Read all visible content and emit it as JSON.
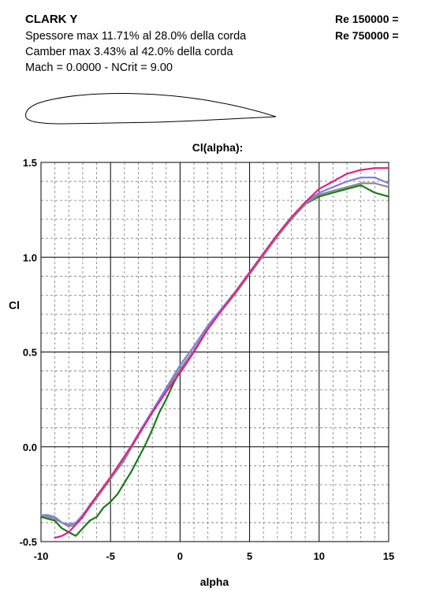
{
  "header": {
    "airfoil_name": "CLARK Y",
    "thickness": "Spessore max 11.71% al 28.0% della corda",
    "camber": "Camber max 3.43% al 42.0% della corda",
    "mach": "Mach = 0.0000 - NCrit = 9.00",
    "re_labels": [
      "Re 150000 =",
      "Re 750000 ="
    ]
  },
  "chart_data": {
    "type": "line",
    "title": "Cl(alpha):",
    "xlabel": "alpha",
    "ylabel": "Cl",
    "xlim": [
      -10,
      15
    ],
    "ylim": [
      -0.5,
      1.5
    ],
    "x_ticks": [
      -10,
      -5,
      0,
      5,
      10,
      15
    ],
    "x_tick_labels": [
      "-10",
      "-5",
      "0",
      "5",
      "10",
      "15"
    ],
    "y_ticks": [
      -0.5,
      0.0,
      0.5,
      1.0,
      1.5
    ],
    "y_tick_labels": [
      "-0.5",
      "0.0",
      "0.5",
      "1.0",
      "1.5"
    ],
    "grid": true,
    "series": [
      {
        "color": "#1a7a1a",
        "x": [
          -10,
          -9.5,
          -9.0,
          -8.5,
          -8.0,
          -7.5,
          -7.0,
          -6.5,
          -6.0,
          -5.5,
          -5.0,
          -4.5,
          -4.0,
          -3.5,
          -3.0,
          -2.5,
          -2.0,
          -1.5,
          -1.0,
          -0.5,
          0.0,
          0.5,
          1.0,
          2.0,
          3.0,
          4.0,
          5.0,
          6.0,
          7.0,
          8.0,
          9.0,
          10.0,
          11.0,
          12.0,
          12.5,
          13.0,
          13.5,
          14.0,
          14.5,
          15.0
        ],
        "y": [
          -0.37,
          -0.38,
          -0.39,
          -0.43,
          -0.45,
          -0.47,
          -0.43,
          -0.39,
          -0.37,
          -0.32,
          -0.29,
          -0.25,
          -0.19,
          -0.13,
          -0.06,
          0.01,
          0.09,
          0.18,
          0.25,
          0.33,
          0.4,
          0.45,
          0.5,
          0.63,
          0.72,
          0.81,
          0.91,
          1.01,
          1.11,
          1.2,
          1.28,
          1.32,
          1.34,
          1.36,
          1.37,
          1.38,
          1.36,
          1.34,
          1.33,
          1.32
        ]
      },
      {
        "color": "#8a8a8a",
        "x": [
          -10,
          -9.5,
          -9.0,
          -8.5,
          -8.0,
          -7.5,
          -7.0,
          -6.5,
          -6.0,
          -5.0,
          -4.0,
          -3.0,
          -2.0,
          -1.0,
          0.0,
          0.5,
          1.0,
          2.0,
          3.0,
          4.0,
          5.0,
          6.0,
          7.0,
          8.0,
          9.0,
          10.0,
          11.0,
          12.0,
          13.0,
          14.0,
          15.0
        ],
        "y": [
          -0.36,
          -0.37,
          -0.38,
          -0.4,
          -0.42,
          -0.41,
          -0.37,
          -0.32,
          -0.27,
          -0.17,
          -0.07,
          0.06,
          0.18,
          0.3,
          0.41,
          0.46,
          0.51,
          0.63,
          0.72,
          0.81,
          0.91,
          1.01,
          1.11,
          1.2,
          1.28,
          1.33,
          1.35,
          1.37,
          1.39,
          1.39,
          1.37
        ]
      },
      {
        "color": "#7f7fe0",
        "x": [
          -10,
          -9.5,
          -9.0,
          -8.5,
          -8.0,
          -7.5,
          -7.0,
          -6.5,
          -6.0,
          -5.0,
          -4.0,
          -3.0,
          -2.0,
          -1.0,
          0.0,
          0.5,
          1.0,
          2.0,
          3.0,
          4.0,
          5.0,
          6.0,
          7.0,
          8.0,
          9.0,
          10.0,
          11.0,
          12.0,
          13.0,
          14.0,
          15.0
        ],
        "y": [
          -0.36,
          -0.36,
          -0.37,
          -0.4,
          -0.41,
          -0.4,
          -0.36,
          -0.31,
          -0.26,
          -0.16,
          -0.06,
          0.07,
          0.19,
          0.31,
          0.43,
          0.48,
          0.53,
          0.64,
          0.73,
          0.82,
          0.92,
          1.02,
          1.12,
          1.21,
          1.29,
          1.34,
          1.37,
          1.4,
          1.42,
          1.42,
          1.39
        ]
      },
      {
        "color": "#e0208a",
        "x": [
          -9.0,
          -8.5,
          -8.0,
          -7.5,
          -7.0,
          -6.5,
          -6.0,
          -5.5,
          -5.0,
          -4.0,
          -3.0,
          -2.0,
          -1.0,
          0.0,
          1.0,
          2.0,
          3.0,
          4.0,
          5.0,
          6.0,
          7.0,
          8.0,
          9.0,
          10.0,
          11.0,
          12.0,
          13.0,
          14.0,
          15.0
        ],
        "y": [
          -0.48,
          -0.47,
          -0.45,
          -0.41,
          -0.37,
          -0.31,
          -0.26,
          -0.21,
          -0.16,
          -0.05,
          0.06,
          0.18,
          0.29,
          0.39,
          0.5,
          0.62,
          0.72,
          0.82,
          0.92,
          1.02,
          1.12,
          1.21,
          1.29,
          1.36,
          1.4,
          1.44,
          1.46,
          1.47,
          1.47
        ]
      }
    ]
  }
}
